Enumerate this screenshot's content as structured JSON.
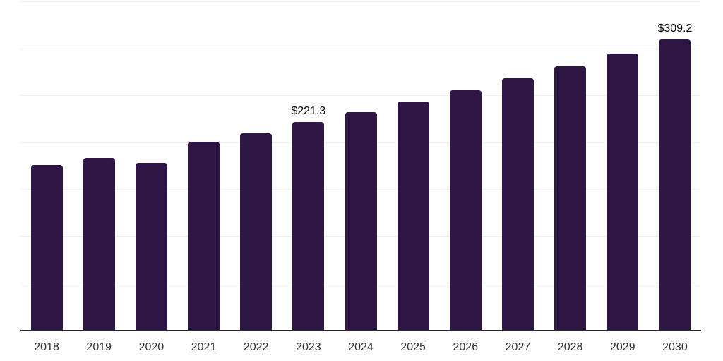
{
  "chart_data": {
    "type": "bar",
    "title": "",
    "xlabel": "",
    "ylabel": "",
    "categories": [
      "2018",
      "2019",
      "2020",
      "2021",
      "2022",
      "2023",
      "2024",
      "2025",
      "2026",
      "2027",
      "2028",
      "2029",
      "2030"
    ],
    "values": [
      175.5,
      183.5,
      177.8,
      200.9,
      209.8,
      221.3,
      232.1,
      243.5,
      255.4,
      267.9,
      281.0,
      294.7,
      309.2
    ],
    "data_labels": [
      {
        "category": "2023",
        "text": "$221.3"
      },
      {
        "category": "2030",
        "text": "$309.2"
      }
    ],
    "ylim": [
      0,
      350
    ],
    "gridline_step": 50,
    "grid": true,
    "legend_position": "none",
    "bar_color": "#2f1745",
    "gridline_color": "#f0f0f1",
    "axis_line_color": "#26262b",
    "data_label_color": "#0a0a0a",
    "tick_label_color": "#333333",
    "background_color": "#ffffff"
  }
}
